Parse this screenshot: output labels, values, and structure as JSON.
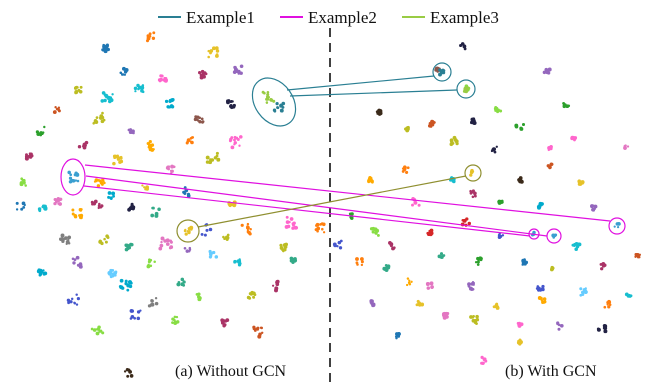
{
  "legend": [
    {
      "label": "Example1",
      "color": "#2a7f93"
    },
    {
      "label": "Example2",
      "color": "#e010e0"
    },
    {
      "label": "Example3",
      "color": "#99cc44"
    }
  ],
  "panels": {
    "left_caption": "(a) Without GCN",
    "right_caption": "(b) With GCN"
  },
  "annotation_colors": {
    "example1": "#2a7f93",
    "example2": "#e010e0",
    "example3": "#8f8f30"
  },
  "divider": {
    "style": "dashed",
    "color": "#111111"
  }
}
